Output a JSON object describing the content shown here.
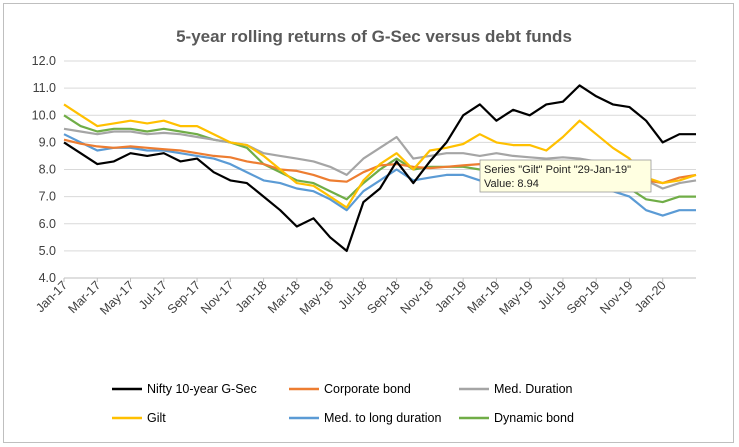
{
  "chart_data": {
    "type": "line",
    "title": "5-year rolling returns of G-Sec versus debt funds",
    "xlabel": "",
    "ylabel": "",
    "ylim": [
      4.0,
      12.0
    ],
    "y_ticks": [
      "4.0",
      "5.0",
      "6.0",
      "7.0",
      "8.0",
      "9.0",
      "10.0",
      "11.0",
      "12.0"
    ],
    "x_ticks": [
      "Jan-17",
      "Mar-17",
      "May-17",
      "Jul-17",
      "Sep-17",
      "Nov-17",
      "Jan-18",
      "Mar-18",
      "May-18",
      "Jul-18",
      "Sep-18",
      "Nov-18",
      "Jan-19",
      "Mar-19",
      "May-19",
      "Jul-19",
      "Sep-19",
      "Nov-19",
      "Jan-20"
    ],
    "grid": "horizontal",
    "legend_position": "bottom",
    "x_start": "Jan-17",
    "x_end": "Mar-20",
    "series": [
      {
        "name": "Nifty 10-year G-Sec",
        "color": "#000000",
        "x": [
          "Jan-17",
          "Feb-17",
          "Mar-17",
          "Apr-17",
          "May-17",
          "Jun-17",
          "Jul-17",
          "Aug-17",
          "Sep-17",
          "Oct-17",
          "Nov-17",
          "Dec-17",
          "Jan-18",
          "Feb-18",
          "Mar-18",
          "Apr-18",
          "May-18",
          "Jun-18",
          "Jul-18",
          "Aug-18",
          "Sep-18",
          "Oct-18",
          "Nov-18",
          "Dec-18",
          "Jan-19",
          "Feb-19",
          "Mar-19",
          "Apr-19",
          "May-19",
          "Jun-19",
          "Jul-19",
          "Aug-19",
          "Sep-19",
          "Oct-19",
          "Nov-19",
          "Dec-19",
          "Jan-20",
          "Feb-20",
          "Mar-20"
        ],
        "values": [
          9.0,
          8.6,
          8.2,
          8.3,
          8.6,
          8.5,
          8.6,
          8.3,
          8.4,
          7.9,
          7.6,
          7.5,
          7.0,
          6.5,
          5.9,
          6.2,
          5.5,
          5.0,
          6.8,
          7.3,
          8.3,
          7.5,
          8.3,
          9.0,
          10.0,
          10.4,
          9.8,
          10.2,
          10.0,
          10.4,
          10.5,
          11.1,
          10.7,
          10.4,
          10.3,
          9.8,
          9.0,
          9.3,
          9.3
        ]
      },
      {
        "name": "Corporate bond",
        "color": "#ed7d31",
        "x": [
          "Jan-17",
          "Feb-17",
          "Mar-17",
          "Apr-17",
          "May-17",
          "Jun-17",
          "Jul-17",
          "Aug-17",
          "Sep-17",
          "Oct-17",
          "Nov-17",
          "Dec-17",
          "Jan-18",
          "Feb-18",
          "Mar-18",
          "Apr-18",
          "May-18",
          "Jun-18",
          "Jul-18",
          "Aug-18",
          "Sep-18",
          "Oct-18",
          "Nov-18",
          "Dec-18",
          "Jan-19",
          "Feb-19",
          "Mar-19",
          "Apr-19",
          "May-19",
          "Jun-19",
          "Jul-19",
          "Aug-19",
          "Sep-19",
          "Oct-19",
          "Nov-19",
          "Dec-19",
          "Jan-20",
          "Feb-20",
          "Mar-20"
        ],
        "values": [
          9.1,
          8.95,
          8.85,
          8.8,
          8.85,
          8.8,
          8.75,
          8.7,
          8.6,
          8.5,
          8.45,
          8.3,
          8.2,
          8.0,
          7.95,
          7.8,
          7.6,
          7.55,
          7.9,
          8.15,
          8.2,
          8.1,
          8.05,
          8.1,
          8.15,
          8.2,
          8.15,
          8.1,
          8.15,
          8.1,
          8.1,
          8.1,
          8.0,
          8.0,
          7.9,
          7.6,
          7.5,
          7.7,
          7.8
        ]
      },
      {
        "name": "Med. Duration",
        "color": "#a5a5a5",
        "x": [
          "Jan-17",
          "Feb-17",
          "Mar-17",
          "Apr-17",
          "May-17",
          "Jun-17",
          "Jul-17",
          "Aug-17",
          "Sep-17",
          "Oct-17",
          "Nov-17",
          "Dec-17",
          "Jan-18",
          "Feb-18",
          "Mar-18",
          "Apr-18",
          "May-18",
          "Jun-18",
          "Jul-18",
          "Aug-18",
          "Sep-18",
          "Oct-18",
          "Nov-18",
          "Dec-18",
          "Jan-19",
          "Feb-19",
          "Mar-19",
          "Apr-19",
          "May-19",
          "Jun-19",
          "Jul-19",
          "Aug-19",
          "Sep-19",
          "Oct-19",
          "Nov-19",
          "Dec-19",
          "Jan-20",
          "Feb-20",
          "Mar-20"
        ],
        "values": [
          9.5,
          9.4,
          9.3,
          9.4,
          9.4,
          9.3,
          9.35,
          9.3,
          9.2,
          9.1,
          9.0,
          8.9,
          8.6,
          8.5,
          8.4,
          8.3,
          8.1,
          7.8,
          8.4,
          8.8,
          9.2,
          8.4,
          8.5,
          8.6,
          8.6,
          8.5,
          8.6,
          8.5,
          8.45,
          8.4,
          8.45,
          8.4,
          8.3,
          8.2,
          8.0,
          7.6,
          7.3,
          7.5,
          7.6
        ]
      },
      {
        "name": "Gilt",
        "color": "#ffc000",
        "x": [
          "Jan-17",
          "Feb-17",
          "Mar-17",
          "Apr-17",
          "May-17",
          "Jun-17",
          "Jul-17",
          "Aug-17",
          "Sep-17",
          "Oct-17",
          "Nov-17",
          "Dec-17",
          "Jan-18",
          "Feb-18",
          "Mar-18",
          "Apr-18",
          "May-18",
          "Jun-18",
          "Jul-18",
          "Aug-18",
          "Sep-18",
          "Oct-18",
          "Nov-18",
          "Dec-18",
          "Jan-19",
          "Feb-19",
          "Mar-19",
          "Apr-19",
          "May-19",
          "Jun-19",
          "Jul-19",
          "Aug-19",
          "Sep-19",
          "Oct-19",
          "Nov-19",
          "Dec-19",
          "Jan-20",
          "Feb-20",
          "Mar-20"
        ],
        "values": [
          10.4,
          10.0,
          9.6,
          9.7,
          9.8,
          9.7,
          9.8,
          9.6,
          9.6,
          9.3,
          9.0,
          8.9,
          8.5,
          8.0,
          7.5,
          7.4,
          7.0,
          6.6,
          7.6,
          8.2,
          8.6,
          8.0,
          8.7,
          8.8,
          8.94,
          9.3,
          9.0,
          8.9,
          8.9,
          8.7,
          9.2,
          9.8,
          9.3,
          8.8,
          8.4,
          7.7,
          7.5,
          7.6,
          7.8
        ]
      },
      {
        "name": "Med. to long duration",
        "color": "#5b9bd5",
        "x": [
          "Jan-17",
          "Feb-17",
          "Mar-17",
          "Apr-17",
          "May-17",
          "Jun-17",
          "Jul-17",
          "Aug-17",
          "Sep-17",
          "Oct-17",
          "Nov-17",
          "Dec-17",
          "Jan-18",
          "Feb-18",
          "Mar-18",
          "Apr-18",
          "May-18",
          "Jun-18",
          "Jul-18",
          "Aug-18",
          "Sep-18",
          "Oct-18",
          "Nov-18",
          "Dec-18",
          "Jan-19",
          "Feb-19",
          "Mar-19",
          "Apr-19",
          "May-19",
          "Jun-19",
          "Jul-19",
          "Aug-19",
          "Sep-19",
          "Oct-19",
          "Nov-19",
          "Dec-19",
          "Jan-20",
          "Feb-20",
          "Mar-20"
        ],
        "values": [
          9.3,
          9.0,
          8.7,
          8.8,
          8.8,
          8.7,
          8.7,
          8.6,
          8.5,
          8.4,
          8.2,
          7.9,
          7.6,
          7.5,
          7.3,
          7.2,
          6.9,
          6.5,
          7.2,
          7.6,
          8.0,
          7.6,
          7.7,
          7.8,
          7.8,
          7.6,
          7.7,
          7.5,
          7.45,
          7.4,
          7.45,
          7.5,
          7.4,
          7.2,
          7.0,
          6.5,
          6.3,
          6.5,
          6.5
        ]
      },
      {
        "name": "Dynamic bond",
        "color": "#70ad47",
        "x": [
          "Jan-17",
          "Feb-17",
          "Mar-17",
          "Apr-17",
          "May-17",
          "Jun-17",
          "Jul-17",
          "Aug-17",
          "Sep-17",
          "Oct-17",
          "Nov-17",
          "Dec-17",
          "Jan-18",
          "Feb-18",
          "Mar-18",
          "Apr-18",
          "May-18",
          "Jun-18",
          "Jul-18",
          "Aug-18",
          "Sep-18",
          "Oct-18",
          "Nov-18",
          "Dec-18",
          "Jan-19",
          "Feb-19",
          "Mar-19",
          "Apr-19",
          "May-19",
          "Jun-19",
          "Jul-19",
          "Aug-19",
          "Sep-19",
          "Oct-19",
          "Nov-19",
          "Dec-19",
          "Jan-20",
          "Feb-20",
          "Mar-20"
        ],
        "values": [
          10.0,
          9.6,
          9.4,
          9.5,
          9.5,
          9.4,
          9.5,
          9.4,
          9.3,
          9.1,
          9.0,
          8.8,
          8.2,
          7.9,
          7.6,
          7.5,
          7.2,
          6.9,
          7.5,
          8.0,
          8.4,
          8.0,
          8.1,
          8.1,
          8.1,
          8.0,
          8.1,
          8.0,
          7.95,
          7.9,
          7.95,
          7.9,
          7.8,
          7.6,
          7.3,
          6.9,
          6.8,
          7.0,
          7.0
        ]
      }
    ],
    "tooltip": {
      "line1": "Series \"Gilt\" Point \"29-Jan-19\"",
      "line2": "Value: 8.94"
    }
  }
}
